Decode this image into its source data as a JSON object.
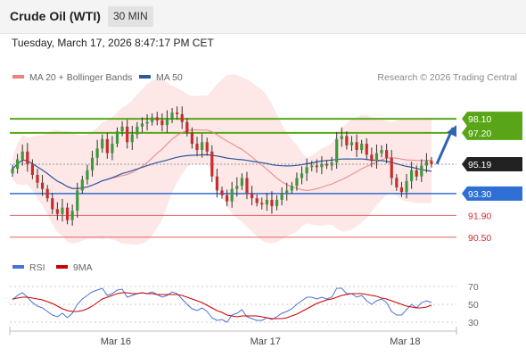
{
  "header": {
    "title": "Crude Oil (WTI)",
    "timeframe": "30 MIN"
  },
  "timestamp": "Tuesday, March 17, 2026 8:47:17 PM CET",
  "legend": {
    "ma20": "MA 20 + Bollinger Bands",
    "ma50": "MA 50",
    "ma20_color": "#f08080",
    "ma50_color": "#2c5aa0"
  },
  "copyright": "Research © 2026 Trading Central",
  "indicator_legend": {
    "rsi": "RSI",
    "ma9": "9MA",
    "rsi_color": "#4a72d6",
    "ma9_color": "#cc0000"
  },
  "chart_data": {
    "type": "candlestick",
    "symbol": "Crude Oil (WTI)",
    "interval": "30 MIN",
    "ylim": [
      89.8,
      100.0
    ],
    "price_levels": [
      {
        "value": 98.1,
        "label": "98.10",
        "kind": "resistance",
        "color": "#58a617"
      },
      {
        "value": 97.2,
        "label": "97.20",
        "kind": "resistance",
        "color": "#58a617"
      },
      {
        "value": 95.19,
        "label": "95.19",
        "kind": "last",
        "color": "#222222"
      },
      {
        "value": 93.3,
        "label": "93.30",
        "kind": "pivot",
        "color": "#2f6fd4"
      },
      {
        "value": 91.9,
        "label": "91.90",
        "kind": "support",
        "color": "#e05050"
      },
      {
        "value": 90.5,
        "label": "90.50",
        "kind": "support",
        "color": "#e05050"
      }
    ],
    "x_ticks": [
      {
        "label": "Mar 16",
        "index": 20
      },
      {
        "label": "Mar 17",
        "index": 50
      },
      {
        "label": "Mar 18",
        "index": 78
      }
    ],
    "closes": [
      94.9,
      95.5,
      96.0,
      95.2,
      94.5,
      94.0,
      93.6,
      93.0,
      92.3,
      92.0,
      92.4,
      91.6,
      92.2,
      93.5,
      94.2,
      94.8,
      95.6,
      96.2,
      96.8,
      95.9,
      96.5,
      97.3,
      97.6,
      96.6,
      97.1,
      97.6,
      97.8,
      97.9,
      98.2,
      98.0,
      97.7,
      98.1,
      98.5,
      98.4,
      97.9,
      97.2,
      96.5,
      96.1,
      96.6,
      96.0,
      94.4,
      93.5,
      93.2,
      92.8,
      93.6,
      93.8,
      94.3,
      93.3,
      93.0,
      92.7,
      92.6,
      92.9,
      92.5,
      92.9,
      93.3,
      93.5,
      93.8,
      94.3,
      94.6,
      95.0,
      95.1,
      95.0,
      95.2,
      95.1,
      95.3,
      96.8,
      97.0,
      96.4,
      96.6,
      96.1,
      96.5,
      95.8,
      95.4,
      95.9,
      96.1,
      95.6,
      94.3,
      93.7,
      93.4,
      94.1,
      94.8,
      94.4,
      95.1,
      95.4,
      95.2
    ],
    "bollinger": {
      "width_ratio_note": "bands drawn around MA 20"
    },
    "ma50_note": "slow moving average",
    "arrow": {
      "from_index": 84,
      "from_value": 95.2,
      "to_value": 97.7
    },
    "rsi": {
      "ticks": [
        70,
        50,
        30
      ],
      "ylim": [
        25,
        75
      ],
      "values": [
        55,
        60,
        63,
        58,
        52,
        48,
        46,
        42,
        38,
        36,
        40,
        35,
        40,
        50,
        56,
        60,
        64,
        66,
        68,
        60,
        62,
        66,
        67,
        58,
        60,
        62,
        63,
        62,
        64,
        61,
        58,
        60,
        64,
        62,
        56,
        50,
        45,
        43,
        46,
        42,
        35,
        32,
        33,
        30,
        38,
        40,
        44,
        36,
        34,
        32,
        32,
        35,
        33,
        36,
        40,
        42,
        45,
        50,
        54,
        58,
        58,
        56,
        58,
        56,
        58,
        68,
        68,
        62,
        62,
        58,
        60,
        54,
        50,
        54,
        56,
        52,
        42,
        38,
        38,
        44,
        50,
        46,
        52,
        54,
        52
      ],
      "ma9": [
        56,
        57,
        58,
        58,
        57,
        56,
        55,
        53,
        51,
        48,
        45,
        43,
        42,
        42,
        43,
        45,
        48,
        52,
        56,
        58,
        60,
        62,
        63,
        63,
        62,
        62,
        63,
        62,
        62,
        61,
        61,
        61,
        61,
        61,
        60,
        58,
        56,
        54,
        52,
        49,
        46,
        43,
        41,
        38,
        37,
        36,
        37,
        37,
        37,
        37,
        36,
        35,
        34,
        34,
        34,
        35,
        37,
        39,
        42,
        45,
        48,
        51,
        53,
        55,
        56,
        58,
        60,
        61,
        62,
        62,
        62,
        61,
        60,
        59,
        57,
        56,
        54,
        52,
        50,
        48,
        47,
        46,
        46,
        47,
        49
      ]
    }
  }
}
